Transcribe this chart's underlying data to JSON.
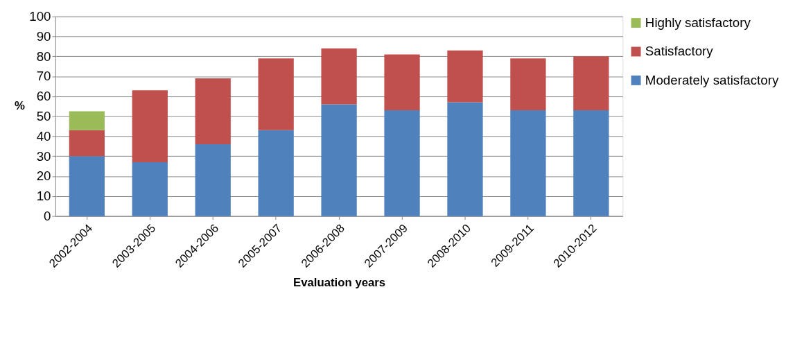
{
  "chart_data": {
    "type": "bar",
    "stacked": true,
    "xlabel": "Evaluation years",
    "ylabel": "%",
    "categories": [
      "2002-2004",
      "2003-2005",
      "2004-2006",
      "2005-2007",
      "2006-2008",
      "2007-2009",
      "2008-2010",
      "2009-2011",
      "2010-2012"
    ],
    "series": [
      {
        "name": "Moderately satisfactory",
        "color": "#4f81bd",
        "values": [
          30,
          27,
          36,
          43,
          56,
          53,
          57,
          53,
          53
        ]
      },
      {
        "name": "Satisfactory",
        "color": "#c0504d",
        "values": [
          13,
          36,
          33,
          36,
          28,
          28,
          26,
          26,
          27
        ]
      },
      {
        "name": "Highly satisfactory",
        "color": "#9bbb59",
        "values": [
          9.5,
          null,
          null,
          null,
          null,
          null,
          null,
          null,
          null
        ]
      }
    ],
    "ylim": [
      0,
      100
    ],
    "yticks": [
      0,
      10,
      20,
      30,
      40,
      50,
      60,
      70,
      80,
      90,
      100
    ],
    "grid": "y",
    "legend": "right"
  }
}
